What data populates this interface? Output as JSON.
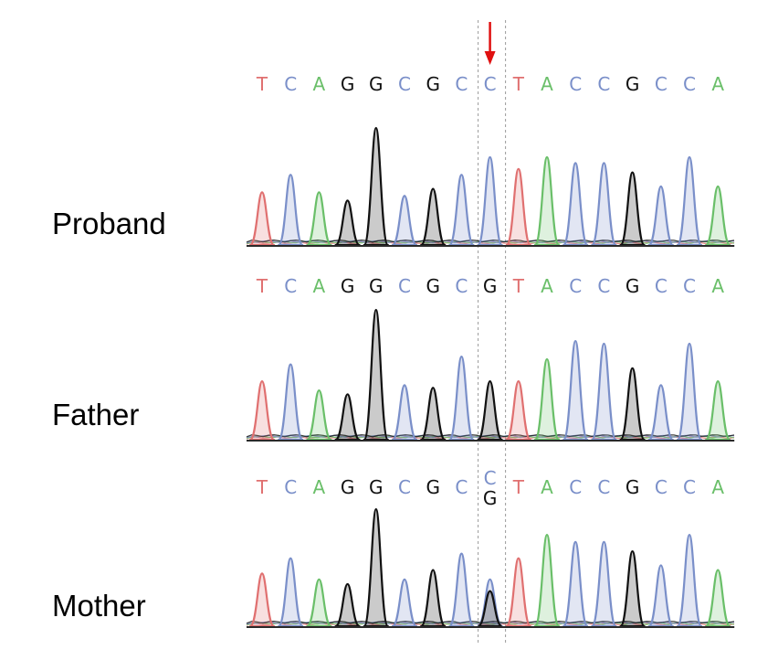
{
  "rows": [
    {
      "label": "Proband",
      "bases": [
        "T",
        "C",
        "A",
        "G",
        "G",
        "C",
        "G",
        "C",
        "C",
        "T",
        "A",
        "C",
        "C",
        "G",
        "C",
        "C",
        "A"
      ],
      "peak_heights": [
        0.45,
        0.6,
        0.45,
        0.38,
        1.0,
        0.42,
        0.48,
        0.6,
        0.75,
        0.65,
        0.75,
        0.7,
        0.7,
        0.62,
        0.5,
        0.75,
        0.5
      ]
    },
    {
      "label": "Father",
      "bases": [
        "T",
        "C",
        "A",
        "G",
        "G",
        "C",
        "G",
        "C",
        "G",
        "T",
        "A",
        "C",
        "C",
        "G",
        "C",
        "C",
        "A"
      ],
      "peak_heights": [
        0.45,
        0.58,
        0.38,
        0.35,
        1.0,
        0.42,
        0.4,
        0.64,
        0.45,
        0.45,
        0.62,
        0.76,
        0.74,
        0.55,
        0.42,
        0.74,
        0.45
      ]
    },
    {
      "label": "Mother",
      "bases": [
        "T",
        "C",
        "A",
        "G",
        "G",
        "C",
        "G",
        "C",
        "C/G",
        "T",
        "A",
        "C",
        "C",
        "G",
        "C",
        "C",
        "A"
      ],
      "peak_heights": [
        0.45,
        0.58,
        0.4,
        0.36,
        1.0,
        0.4,
        0.48,
        0.62,
        0.4,
        0.58,
        0.78,
        0.72,
        0.72,
        0.64,
        0.52,
        0.78,
        0.48
      ],
      "secondary_peak": {
        "position": 9,
        "base": "G",
        "height": 0.3
      }
    }
  ],
  "variant_position": 9,
  "colors": {
    "A": "#6abf69",
    "C": "#7a8fc9",
    "G": "#111111",
    "T": "#e07070",
    "arrow": "#e01010"
  },
  "icons": {
    "variant_marker": "down-arrow-icon"
  }
}
